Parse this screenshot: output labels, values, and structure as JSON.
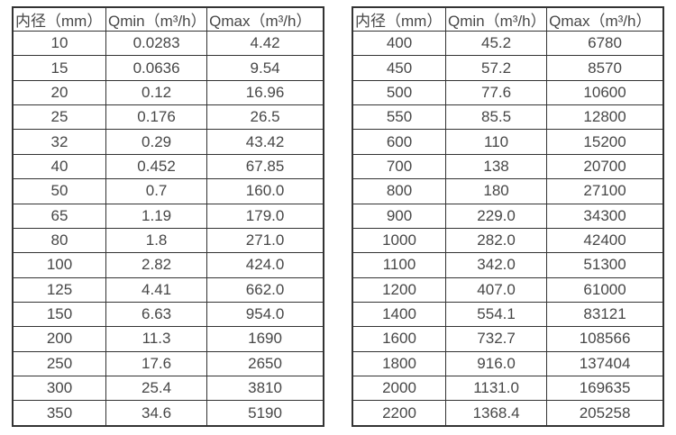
{
  "page": {
    "background": "#ffffff",
    "border_color": "#333333",
    "text_color": "#474747"
  },
  "chart_data": [
    {
      "type": "table",
      "name": "flow-range-small-diameters",
      "columns": [
        "内径（mm）",
        "Qmin（m³/h）",
        "Qmax（m³/h）"
      ],
      "rows": [
        [
          "10",
          "0.0283",
          "4.42"
        ],
        [
          "15",
          "0.0636",
          "9.54"
        ],
        [
          "20",
          "0.12",
          "16.96"
        ],
        [
          "25",
          "0.176",
          "26.5"
        ],
        [
          "32",
          "0.29",
          "43.42"
        ],
        [
          "40",
          "0.452",
          "67.85"
        ],
        [
          "50",
          "0.7",
          "160.0"
        ],
        [
          "65",
          "1.19",
          "179.0"
        ],
        [
          "80",
          "1.8",
          "271.0"
        ],
        [
          "100",
          "2.82",
          "424.0"
        ],
        [
          "125",
          "4.41",
          "662.0"
        ],
        [
          "150",
          "6.63",
          "954.0"
        ],
        [
          "200",
          "11.3",
          "1690"
        ],
        [
          "250",
          "17.6",
          "2650"
        ],
        [
          "300",
          "25.4",
          "3810"
        ],
        [
          "350",
          "34.6",
          "5190"
        ]
      ]
    },
    {
      "type": "table",
      "name": "flow-range-large-diameters",
      "columns": [
        "内径（mm）",
        "Qmin（m³/h）",
        "Qmax（m³/h）"
      ],
      "rows": [
        [
          "400",
          "45.2",
          "6780"
        ],
        [
          "450",
          "57.2",
          "8570"
        ],
        [
          "500",
          "77.6",
          "10600"
        ],
        [
          "550",
          "85.5",
          "12800"
        ],
        [
          "600",
          "110",
          "15200"
        ],
        [
          "700",
          "138",
          "20700"
        ],
        [
          "800",
          "180",
          "27100"
        ],
        [
          "900",
          "229.0",
          "34300"
        ],
        [
          "1000",
          "282.0",
          "42400"
        ],
        [
          "1100",
          "342.0",
          "51300"
        ],
        [
          "1200",
          "407.0",
          "61000"
        ],
        [
          "1400",
          "554.1",
          "83121"
        ],
        [
          "1600",
          "732.7",
          "108566"
        ],
        [
          "1800",
          "916.0",
          "137404"
        ],
        [
          "2000",
          "1131.0",
          "169635"
        ],
        [
          "2200",
          "1368.4",
          "205258"
        ]
      ]
    }
  ]
}
